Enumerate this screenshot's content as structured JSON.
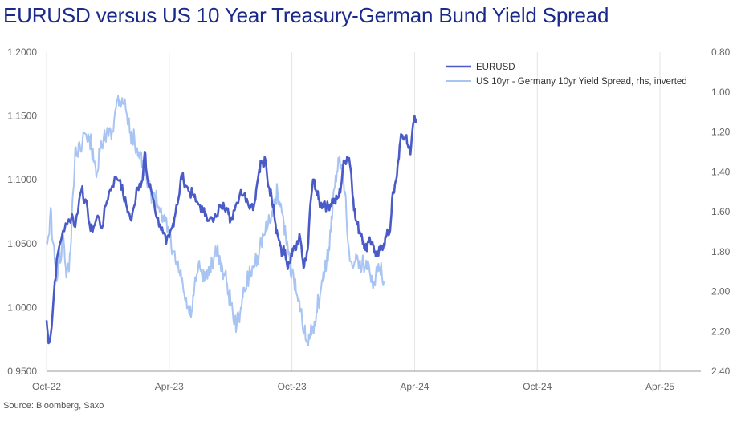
{
  "title": "EURUSD versus US 10 Year Treasury-German Bund Yield Spread",
  "source": "Source: Bloomberg, Saxo",
  "chart_data": {
    "type": "line",
    "colors": {
      "eurusd": "#4a5bc7",
      "spread": "#a8c4f2"
    },
    "x_ticks": [
      "Oct-22",
      "Apr-23",
      "Oct-23",
      "Apr-24",
      "Oct-24",
      "Apr-25"
    ],
    "y_left": {
      "min": 0.95,
      "max": 1.2,
      "ticks": [
        "0.9500",
        "1.0000",
        "1.0500",
        "1.1000",
        "1.1500",
        "1.2000"
      ]
    },
    "y_right": {
      "min": 0.8,
      "max": 2.4,
      "inverted": true,
      "ticks": [
        "0.80",
        "1.00",
        "1.20",
        "1.40",
        "1.60",
        "1.80",
        "2.00",
        "2.20",
        "2.40"
      ]
    },
    "legend": [
      "EURUSD",
      "US 10yr - Germany 10yr Yield Spread, rhs, inverted"
    ],
    "series": [
      {
        "name": "EURUSD",
        "axis": "left",
        "points": [
          [
            0.0,
            0.99
          ],
          [
            0.1,
            0.972
          ],
          [
            0.25,
            0.985
          ],
          [
            0.4,
            1.02
          ],
          [
            0.55,
            1.042
          ],
          [
            0.8,
            1.06
          ],
          [
            1.0,
            1.065
          ],
          [
            1.25,
            1.073
          ],
          [
            1.4,
            1.063
          ],
          [
            1.6,
            1.085
          ],
          [
            1.75,
            1.095
          ],
          [
            1.85,
            1.082
          ],
          [
            2.0,
            1.078
          ],
          [
            2.15,
            1.06
          ],
          [
            2.3,
            1.063
          ],
          [
            2.5,
            1.072
          ],
          [
            2.7,
            1.062
          ],
          [
            2.9,
            1.08
          ],
          [
            3.05,
            1.09
          ],
          [
            3.2,
            1.095
          ],
          [
            3.4,
            1.102
          ],
          [
            3.6,
            1.1
          ],
          [
            3.75,
            1.088
          ],
          [
            3.9,
            1.08
          ],
          [
            4.0,
            1.075
          ],
          [
            4.15,
            1.068
          ],
          [
            4.3,
            1.08
          ],
          [
            4.4,
            1.093
          ],
          [
            4.55,
            1.097
          ],
          [
            4.7,
            1.1
          ],
          [
            4.8,
            1.122
          ],
          [
            4.9,
            1.105
          ],
          [
            5.0,
            1.095
          ],
          [
            5.1,
            1.093
          ],
          [
            5.25,
            1.083
          ],
          [
            5.4,
            1.07
          ],
          [
            5.55,
            1.065
          ],
          [
            5.7,
            1.058
          ],
          [
            5.85,
            1.05
          ],
          [
            6.0,
            1.055
          ],
          [
            6.15,
            1.063
          ],
          [
            6.25,
            1.07
          ],
          [
            6.35,
            1.08
          ],
          [
            6.5,
            1.089
          ],
          [
            6.6,
            1.104
          ],
          [
            6.7,
            1.1
          ],
          [
            6.85,
            1.095
          ],
          [
            7.0,
            1.09
          ],
          [
            7.15,
            1.089
          ],
          [
            7.3,
            1.083
          ],
          [
            7.5,
            1.08
          ],
          [
            7.65,
            1.075
          ],
          [
            7.8,
            1.073
          ],
          [
            8.0,
            1.07
          ],
          [
            8.15,
            1.067
          ],
          [
            8.3,
            1.071
          ],
          [
            8.5,
            1.08
          ],
          [
            8.65,
            1.082
          ],
          [
            8.8,
            1.078
          ],
          [
            8.9,
            1.073
          ],
          [
            9.0,
            1.068
          ],
          [
            9.15,
            1.076
          ],
          [
            9.3,
            1.082
          ],
          [
            9.5,
            1.092
          ],
          [
            9.65,
            1.088
          ],
          [
            9.8,
            1.085
          ],
          [
            10.0,
            1.08
          ],
          [
            10.15,
            1.08
          ],
          [
            10.25,
            1.092
          ],
          [
            10.4,
            1.108
          ],
          [
            10.5,
            1.115
          ],
          [
            10.6,
            1.11
          ],
          [
            10.7,
            1.116
          ],
          [
            10.8,
            1.1
          ],
          [
            10.9,
            1.093
          ],
          [
            11.0,
            1.087
          ],
          [
            11.1,
            1.08
          ],
          [
            11.2,
            1.065
          ],
          [
            11.3,
            1.057
          ],
          [
            11.4,
            1.052
          ],
          [
            11.5,
            1.04
          ],
          [
            11.6,
            1.048
          ],
          [
            11.7,
            1.038
          ],
          [
            11.8,
            1.03
          ],
          [
            11.9,
            1.035
          ],
          [
            12.0,
            1.04
          ],
          [
            12.1,
            1.048
          ],
          [
            12.2,
            1.045
          ],
          [
            12.3,
            1.05
          ],
          [
            12.4,
            1.055
          ],
          [
            12.5,
            1.04
          ],
          [
            12.6,
            1.032
          ],
          [
            12.7,
            1.038
          ],
          [
            12.8,
            1.05
          ],
          [
            12.9,
            1.08
          ],
          [
            13.0,
            1.095
          ],
          [
            13.1,
            1.1
          ],
          [
            13.2,
            1.09
          ],
          [
            13.3,
            1.085
          ],
          [
            13.4,
            1.08
          ],
          [
            13.5,
            1.081
          ],
          [
            13.6,
            1.083
          ],
          [
            13.7,
            1.078
          ],
          [
            13.8,
            1.08
          ],
          [
            13.9,
            1.081
          ],
          [
            14.0,
            1.085
          ],
          [
            14.1,
            1.082
          ],
          [
            14.2,
            1.085
          ],
          [
            14.3,
            1.088
          ],
          [
            14.4,
            1.095
          ],
          [
            14.5,
            1.11
          ],
          [
            14.6,
            1.115
          ],
          [
            14.7,
            1.118
          ],
          [
            14.8,
            1.117
          ],
          [
            14.9,
            1.105
          ],
          [
            15.0,
            1.085
          ],
          [
            15.1,
            1.07
          ],
          [
            15.2,
            1.065
          ],
          [
            15.3,
            1.06
          ],
          [
            15.4,
            1.058
          ],
          [
            15.5,
            1.052
          ],
          [
            15.6,
            1.045
          ],
          [
            15.7,
            1.05
          ],
          [
            15.8,
            1.055
          ],
          [
            15.9,
            1.05
          ],
          [
            16.0,
            1.048
          ],
          [
            16.1,
            1.04
          ],
          [
            16.2,
            1.04
          ],
          [
            16.3,
            1.045
          ],
          [
            16.4,
            1.048
          ],
          [
            16.5,
            1.05
          ],
          [
            16.6,
            1.055
          ],
          [
            16.7,
            1.058
          ],
          [
            16.8,
            1.06
          ],
          [
            16.9,
            1.085
          ],
          [
            17.0,
            1.09
          ],
          [
            17.1,
            1.1
          ],
          [
            17.2,
            1.115
          ],
          [
            17.3,
            1.13
          ],
          [
            17.4,
            1.135
          ],
          [
            17.5,
            1.132
          ],
          [
            17.6,
            1.135
          ],
          [
            17.7,
            1.125
          ],
          [
            17.8,
            1.12
          ],
          [
            17.9,
            1.14
          ],
          [
            18.0,
            1.15
          ],
          [
            18.1,
            1.148
          ]
        ]
      },
      {
        "name": "US 10yr - Germany 10yr Yield Spread, rhs, inverted",
        "axis": "right",
        "points": [
          [
            0.0,
            1.75
          ],
          [
            0.1,
            1.72
          ],
          [
            0.2,
            1.58
          ],
          [
            0.3,
            1.75
          ],
          [
            0.4,
            1.85
          ],
          [
            0.5,
            1.95
          ],
          [
            0.6,
            1.8
          ],
          [
            0.7,
            1.85
          ],
          [
            0.8,
            1.7
          ],
          [
            0.9,
            1.85
          ],
          [
            1.0,
            1.9
          ],
          [
            1.1,
            1.9
          ],
          [
            1.2,
            1.75
          ],
          [
            1.3,
            1.5
          ],
          [
            1.4,
            1.28
          ],
          [
            1.5,
            1.3
          ],
          [
            1.6,
            1.25
          ],
          [
            1.7,
            1.3
          ],
          [
            1.8,
            1.2
          ],
          [
            2.0,
            1.25
          ],
          [
            2.1,
            1.22
          ],
          [
            2.2,
            1.28
          ],
          [
            2.3,
            1.35
          ],
          [
            2.4,
            1.38
          ],
          [
            2.5,
            1.4
          ],
          [
            2.6,
            1.3
          ],
          [
            2.7,
            1.28
          ],
          [
            2.8,
            1.22
          ],
          [
            2.9,
            1.25
          ],
          [
            3.0,
            1.2
          ],
          [
            3.1,
            1.18
          ],
          [
            3.2,
            1.2
          ],
          [
            3.3,
            1.15
          ],
          [
            3.4,
            1.08
          ],
          [
            3.5,
            1.02
          ],
          [
            3.6,
            1.05
          ],
          [
            3.7,
            1.03
          ],
          [
            3.8,
            1.05
          ],
          [
            3.9,
            1.1
          ],
          [
            4.0,
            1.15
          ],
          [
            4.1,
            1.2
          ],
          [
            4.2,
            1.25
          ],
          [
            4.3,
            1.23
          ],
          [
            4.4,
            1.28
          ],
          [
            4.5,
            1.3
          ],
          [
            4.6,
            1.3
          ],
          [
            4.7,
            1.38
          ],
          [
            4.8,
            1.4
          ],
          [
            4.9,
            1.45
          ],
          [
            5.0,
            1.48
          ],
          [
            5.1,
            1.5
          ],
          [
            5.2,
            1.52
          ],
          [
            5.3,
            1.53
          ],
          [
            5.4,
            1.55
          ],
          [
            5.5,
            1.58
          ],
          [
            5.6,
            1.58
          ],
          [
            5.7,
            1.62
          ],
          [
            5.8,
            1.65
          ],
          [
            5.9,
            1.7
          ],
          [
            6.0,
            1.72
          ],
          [
            6.1,
            1.78
          ],
          [
            6.2,
            1.8
          ],
          [
            6.3,
            1.85
          ],
          [
            6.4,
            1.88
          ],
          [
            6.5,
            1.9
          ],
          [
            6.6,
            1.95
          ],
          [
            6.7,
            2.0
          ],
          [
            6.8,
            2.05
          ],
          [
            6.9,
            2.08
          ],
          [
            7.0,
            2.12
          ],
          [
            7.1,
            2.1
          ],
          [
            7.2,
            2.02
          ],
          [
            7.3,
            1.95
          ],
          [
            7.4,
            1.9
          ],
          [
            7.5,
            1.88
          ],
          [
            7.6,
            1.92
          ],
          [
            7.7,
            1.95
          ],
          [
            7.8,
            1.92
          ],
          [
            7.9,
            1.9
          ],
          [
            8.0,
            1.88
          ],
          [
            8.1,
            1.85
          ],
          [
            8.2,
            1.82
          ],
          [
            8.3,
            1.8
          ],
          [
            8.4,
            1.82
          ],
          [
            8.5,
            1.85
          ],
          [
            8.6,
            1.88
          ],
          [
            8.7,
            1.92
          ],
          [
            8.8,
            1.95
          ],
          [
            8.9,
            2.0
          ],
          [
            9.0,
            2.05
          ],
          [
            9.1,
            2.1
          ],
          [
            9.2,
            2.15
          ],
          [
            9.3,
            2.17
          ],
          [
            9.4,
            2.12
          ],
          [
            9.5,
            2.08
          ],
          [
            9.6,
            2.03
          ],
          [
            9.7,
            2.0
          ],
          [
            9.8,
            1.95
          ],
          [
            9.9,
            1.93
          ],
          [
            10.0,
            1.9
          ],
          [
            10.1,
            1.88
          ],
          [
            10.2,
            1.85
          ],
          [
            10.3,
            1.82
          ],
          [
            10.4,
            1.8
          ],
          [
            10.5,
            1.75
          ],
          [
            10.6,
            1.72
          ],
          [
            10.7,
            1.7
          ],
          [
            10.8,
            1.68
          ],
          [
            10.9,
            1.65
          ],
          [
            11.0,
            1.6
          ],
          [
            11.1,
            1.58
          ],
          [
            11.2,
            1.53
          ],
          [
            11.3,
            1.5
          ],
          [
            11.4,
            1.55
          ],
          [
            11.5,
            1.6
          ],
          [
            11.6,
            1.65
          ],
          [
            11.7,
            1.72
          ],
          [
            11.8,
            1.78
          ],
          [
            11.9,
            1.85
          ],
          [
            12.0,
            1.9
          ],
          [
            12.1,
            1.95
          ],
          [
            12.2,
            2.0
          ],
          [
            12.3,
            2.05
          ],
          [
            12.4,
            2.1
          ],
          [
            12.5,
            2.15
          ],
          [
            12.6,
            2.2
          ],
          [
            12.7,
            2.25
          ],
          [
            12.8,
            2.27
          ],
          [
            12.9,
            2.22
          ],
          [
            13.0,
            2.18
          ],
          [
            13.1,
            2.15
          ],
          [
            13.2,
            2.1
          ],
          [
            13.3,
            2.05
          ],
          [
            13.4,
            2.0
          ],
          [
            13.5,
            1.95
          ],
          [
            13.6,
            1.9
          ],
          [
            13.7,
            1.85
          ],
          [
            13.8,
            1.78
          ],
          [
            13.9,
            1.7
          ],
          [
            14.0,
            1.55
          ],
          [
            14.1,
            1.48
          ],
          [
            14.2,
            1.4
          ],
          [
            14.3,
            1.35
          ],
          [
            14.4,
            1.38
          ],
          [
            14.5,
            1.4
          ],
          [
            14.6,
            1.5
          ],
          [
            14.7,
            1.7
          ],
          [
            14.8,
            1.8
          ],
          [
            14.9,
            1.85
          ],
          [
            15.0,
            1.88
          ],
          [
            15.1,
            1.85
          ],
          [
            15.2,
            1.82
          ],
          [
            15.3,
            1.85
          ],
          [
            15.4,
            1.9
          ],
          [
            15.5,
            1.85
          ],
          [
            15.6,
            1.88
          ],
          [
            15.7,
            1.85
          ],
          [
            15.8,
            1.9
          ],
          [
            15.9,
            1.92
          ],
          [
            16.0,
            1.95
          ],
          [
            16.1,
            1.92
          ],
          [
            16.2,
            1.9
          ],
          [
            16.3,
            1.88
          ],
          [
            16.4,
            1.92
          ],
          [
            16.5,
            1.95
          ]
        ]
      }
    ]
  }
}
